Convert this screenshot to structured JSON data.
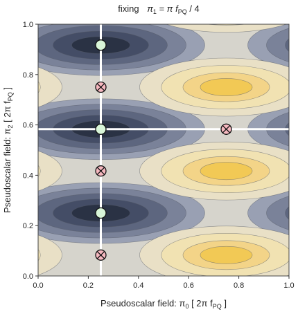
{
  "chart_data": {
    "type": "contour",
    "title_parts": {
      "prefix": "fixing",
      "var": "π",
      "sub": "1",
      "mid": " = π f",
      "sub2": "PQ",
      "suffix": " / 4"
    },
    "xlabel_parts": {
      "prefix": "Pseudoscalar field:  π",
      "sub": "0",
      "mid": "  [ 2π f",
      "sub2": "PQ",
      "suffix": " ]"
    },
    "ylabel_parts": {
      "prefix": "Pseudoscalar field:  π",
      "sub": "2",
      "mid": "  [ 2π f",
      "sub2": "PQ",
      "suffix": " ]"
    },
    "xlim": [
      0.0,
      1.0
    ],
    "ylim": [
      0.0,
      1.0
    ],
    "x_ticks": [
      "0.0",
      "0.2",
      "0.4",
      "0.6",
      "0.8",
      "1.0"
    ],
    "y_ticks": [
      "0.0",
      "0.2",
      "0.4",
      "0.6",
      "0.8",
      "1.0"
    ],
    "x_tick_values": [
      0.0,
      0.2,
      0.4,
      0.6,
      0.8,
      1.0
    ],
    "y_tick_values": [
      0.0,
      0.2,
      0.4,
      0.6,
      0.8,
      1.0
    ],
    "white_lines": {
      "vertical_x": 0.25,
      "horizontal_y": 0.583
    },
    "minima_points": [
      {
        "x": 0.25,
        "y": 0.917
      },
      {
        "x": 0.25,
        "y": 0.583
      },
      {
        "x": 0.25,
        "y": 0.25
      }
    ],
    "saddle_points": [
      {
        "x": 0.25,
        "y": 0.75
      },
      {
        "x": 0.25,
        "y": 0.417
      },
      {
        "x": 0.25,
        "y": 0.083
      },
      {
        "x": 0.75,
        "y": 0.583
      }
    ],
    "colors": {
      "dark": "#2a3244",
      "mid": "#8f96aa",
      "neutral": "#d6d4cc",
      "light": "#f1e2b2",
      "bright": "#f2c955",
      "minimum_fill": "#d8f5d8",
      "saddle_fill": "#f6b8bf",
      "line": "#ffffff"
    }
  }
}
